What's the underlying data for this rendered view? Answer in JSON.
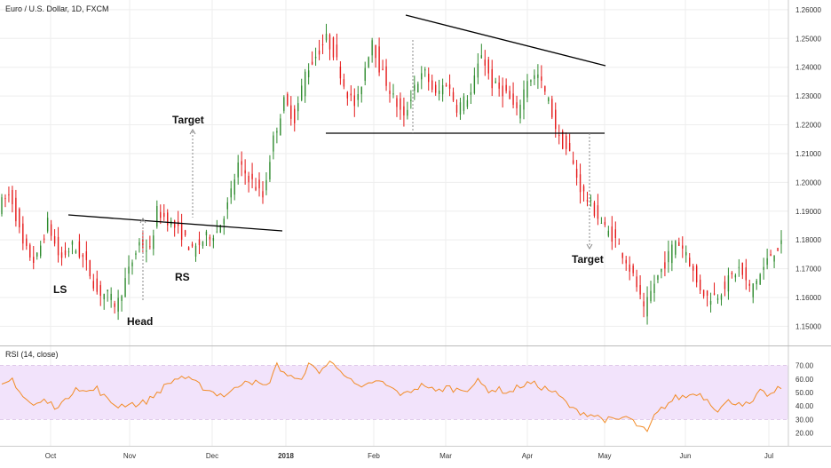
{
  "chart_data": {
    "type": "candlestick",
    "title": "Euro / U.S. Dollar, 1D, FXCM",
    "colors": {
      "up": "#2e8b2e",
      "down": "#e51a1a",
      "rsi_line": "#f28c28",
      "rsi_band": "#f2e3fb",
      "grid": "#eeeeee",
      "pattern_line": "#000000"
    },
    "price_axis": {
      "ticks": [
        "1.26000",
        "1.25000",
        "1.24000",
        "1.23000",
        "1.22000",
        "1.21000",
        "1.20000",
        "1.19000",
        "1.18000",
        "1.17000",
        "1.16000",
        "1.15000"
      ],
      "ylim": [
        1.1455,
        1.2615
      ]
    },
    "time_axis": {
      "labels": [
        "Oct",
        "Nov",
        "Dec",
        "2018",
        "Feb",
        "Mar",
        "Apr",
        "May",
        "Jun",
        "Jul"
      ]
    },
    "ohlc_path": [
      [
        0,
        1.192
      ],
      [
        7,
        1.196
      ],
      [
        14,
        1.178
      ],
      [
        21,
        1.172
      ],
      [
        28,
        1.186
      ],
      [
        35,
        1.173
      ],
      [
        42,
        1.178
      ],
      [
        49,
        1.173
      ],
      [
        56,
        1.162
      ],
      [
        62,
        1.161
      ],
      [
        67,
        1.157
      ],
      [
        72,
        1.166
      ],
      [
        80,
        1.179
      ],
      [
        86,
        1.176
      ],
      [
        90,
        1.19
      ],
      [
        96,
        1.187
      ],
      [
        104,
        1.182
      ],
      [
        110,
        1.176
      ],
      [
        118,
        1.181
      ],
      [
        124,
        1.183
      ],
      [
        130,
        1.192
      ],
      [
        136,
        1.206
      ],
      [
        143,
        1.201
      ],
      [
        150,
        1.195
      ],
      [
        156,
        1.215
      ],
      [
        162,
        1.228
      ],
      [
        168,
        1.222
      ],
      [
        174,
        1.238
      ],
      [
        180,
        1.244
      ],
      [
        186,
        1.25
      ],
      [
        191,
        1.244
      ],
      [
        197,
        1.232
      ],
      [
        203,
        1.226
      ],
      [
        208,
        1.24
      ],
      [
        212,
        1.25
      ],
      [
        216,
        1.24
      ],
      [
        222,
        1.232
      ],
      [
        230,
        1.222
      ],
      [
        236,
        1.234
      ],
      [
        242,
        1.238
      ],
      [
        248,
        1.23
      ],
      [
        254,
        1.235
      ],
      [
        260,
        1.226
      ],
      [
        268,
        1.231
      ],
      [
        274,
        1.245
      ],
      [
        280,
        1.234
      ],
      [
        288,
        1.231
      ],
      [
        294,
        1.224
      ],
      [
        300,
        1.236
      ],
      [
        306,
        1.237
      ],
      [
        312,
        1.228
      ],
      [
        318,
        1.215
      ],
      [
        324,
        1.21
      ],
      [
        330,
        1.198
      ],
      [
        338,
        1.19
      ],
      [
        344,
        1.184
      ],
      [
        350,
        1.18
      ],
      [
        356,
        1.173
      ],
      [
        362,
        1.164
      ],
      [
        366,
        1.155
      ],
      [
        372,
        1.165
      ],
      [
        378,
        1.172
      ],
      [
        384,
        1.18
      ],
      [
        390,
        1.176
      ],
      [
        396,
        1.165
      ],
      [
        402,
        1.16
      ],
      [
        408,
        1.161
      ],
      [
        414,
        1.166
      ],
      [
        420,
        1.17
      ],
      [
        426,
        1.163
      ],
      [
        432,
        1.168
      ],
      [
        438,
        1.175
      ],
      [
        443,
        1.178
      ]
    ],
    "rsi": {
      "label": "RSI (14, close)",
      "ticks": [
        "70.00",
        "60.00",
        "50.00",
        "40.00",
        "30.00",
        "20.00"
      ],
      "band": [
        30,
        70
      ],
      "ylim": [
        15,
        75
      ],
      "path": [
        [
          0,
          54
        ],
        [
          6,
          60
        ],
        [
          12,
          47
        ],
        [
          18,
          40
        ],
        [
          24,
          44
        ],
        [
          30,
          40
        ],
        [
          36,
          43
        ],
        [
          42,
          55
        ],
        [
          48,
          50
        ],
        [
          54,
          53
        ],
        [
          60,
          44
        ],
        [
          66,
          40
        ],
        [
          72,
          42
        ],
        [
          78,
          41
        ],
        [
          84,
          45
        ],
        [
          90,
          52
        ],
        [
          96,
          58
        ],
        [
          102,
          62
        ],
        [
          108,
          58
        ],
        [
          114,
          54
        ],
        [
          120,
          50
        ],
        [
          126,
          48
        ],
        [
          132,
          52
        ],
        [
          138,
          60
        ],
        [
          144,
          57
        ],
        [
          150,
          54
        ],
        [
          156,
          70
        ],
        [
          162,
          63
        ],
        [
          168,
          58
        ],
        [
          174,
          70
        ],
        [
          180,
          66
        ],
        [
          186,
          72
        ],
        [
          192,
          68
        ],
        [
          198,
          58
        ],
        [
          204,
          52
        ],
        [
          210,
          58
        ],
        [
          216,
          57
        ],
        [
          222,
          52
        ],
        [
          228,
          48
        ],
        [
          234,
          53
        ],
        [
          240,
          56
        ],
        [
          246,
          50
        ],
        [
          252,
          54
        ],
        [
          258,
          52
        ],
        [
          264,
          53
        ],
        [
          270,
          58
        ],
        [
          276,
          52
        ],
        [
          282,
          52
        ],
        [
          288,
          50
        ],
        [
          294,
          55
        ],
        [
          300,
          57
        ],
        [
          306,
          54
        ],
        [
          312,
          51
        ],
        [
          318,
          45
        ],
        [
          324,
          37
        ],
        [
          330,
          35
        ],
        [
          336,
          33
        ],
        [
          342,
          30
        ],
        [
          348,
          29
        ],
        [
          354,
          32
        ],
        [
          360,
          26
        ],
        [
          366,
          20
        ],
        [
          370,
          32
        ],
        [
          376,
          40
        ],
        [
          382,
          46
        ],
        [
          388,
          47
        ],
        [
          394,
          50
        ],
        [
          400,
          45
        ],
        [
          406,
          37
        ],
        [
          412,
          43
        ],
        [
          418,
          43
        ],
        [
          424,
          40
        ],
        [
          430,
          50
        ],
        [
          436,
          48
        ],
        [
          443,
          55
        ]
      ]
    },
    "annotations": {
      "ls": "LS",
      "head": "Head",
      "rs": "RS",
      "target_left": "Target",
      "target_right": "Target"
    }
  }
}
